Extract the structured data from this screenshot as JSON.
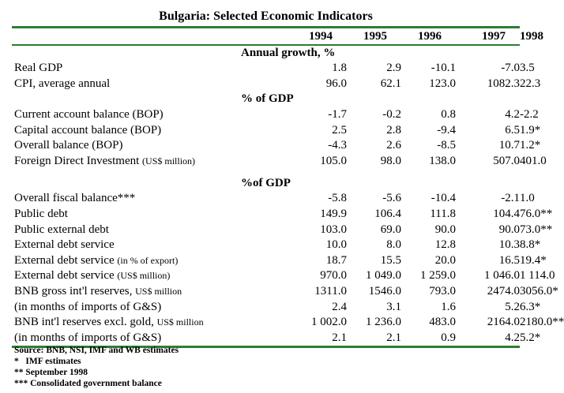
{
  "title": "Bulgaria: Selected Economic Indicators",
  "columns": [
    "1994",
    "1995",
    "1996",
    "1997",
    "1998"
  ],
  "sections": [
    {
      "heading": "Annual growth, %",
      "rows": [
        {
          "label": "Real GDP",
          "values": [
            "1.8",
            "2.9",
            "-10.1",
            "-7.0",
            "3.5"
          ]
        },
        {
          "label": "CPI, average annual",
          "values": [
            "96.0",
            "62.1",
            "123.0",
            "1082.3",
            "22.3"
          ]
        }
      ]
    },
    {
      "heading": "% of GDP",
      "rows": [
        {
          "label": "Current account balance (BOP)",
          "values": [
            "-1.7",
            "-0.2",
            "0.8",
            "4.2",
            "-2.2"
          ]
        },
        {
          "label": "Capital account balance (BOP)",
          "values": [
            "2.5",
            "2.8",
            "-9.4",
            "6.5",
            "1.9*"
          ]
        },
        {
          "label": "Overall balance (BOP)",
          "values": [
            "-4.3",
            "2.6",
            "-8.5",
            "10.7",
            "1.2*"
          ]
        },
        {
          "label": "Foreign Direct Investment",
          "note": "(US$ million)",
          "values": [
            "105.0",
            "98.0",
            "138.0",
            "507.0",
            "401.0"
          ]
        }
      ]
    },
    {
      "heading": "%of GDP",
      "rows": [
        {
          "label": "Overall fiscal balance***",
          "values": [
            "-5.8",
            "-5.6",
            "-10.4",
            "-2.1",
            "1.0"
          ]
        },
        {
          "label": "Public debt",
          "values": [
            "149.9",
            "106.4",
            "111.8",
            "104.4",
            "76.0**"
          ]
        },
        {
          "label": "Public external debt",
          "values": [
            "103.0",
            "69.0",
            "90.0",
            "90.0",
            "73.0**"
          ]
        },
        {
          "label": "External debt service",
          "values": [
            "10.0",
            "8.0",
            "12.8",
            "10.3",
            "8.8*"
          ]
        },
        {
          "label": "External debt service",
          "note": "(in % of export)",
          "values": [
            "18.7",
            "15.5",
            "20.0",
            "16.5",
            "19.4*"
          ]
        },
        {
          "label": "External debt service",
          "note": "(US$ million)",
          "values": [
            "970.0",
            "1 049.0",
            "1 259.0",
            "1 046.0",
            "1 114.0"
          ]
        },
        {
          "label": "BNB gross int'l reserves,",
          "note": "US$ million",
          "values": [
            "1311.0",
            "1546.0",
            "793.0",
            "2474.0",
            "3056.0*"
          ]
        },
        {
          "label": "(in months of imports of G&S)",
          "values": [
            "2.4",
            "3.1",
            "1.6",
            "5.2",
            "6.3*"
          ]
        },
        {
          "label": "BNB int'l reserves excl. gold,",
          "note": "US$ million",
          "values": [
            "1 002.0",
            "1 236.0",
            "483.0",
            "2164.0",
            "2180.0**"
          ]
        },
        {
          "label": "(in months of imports of G&S)",
          "values": [
            "2.1",
            "2.1",
            "0.9",
            "4.2",
            "5.2*"
          ]
        }
      ]
    }
  ],
  "footnotes": [
    "Source: BNB, NSI, IMF and WB estimates",
    "*   IMF estimates",
    "** September 1998",
    "*** Consolidated government balance"
  ]
}
